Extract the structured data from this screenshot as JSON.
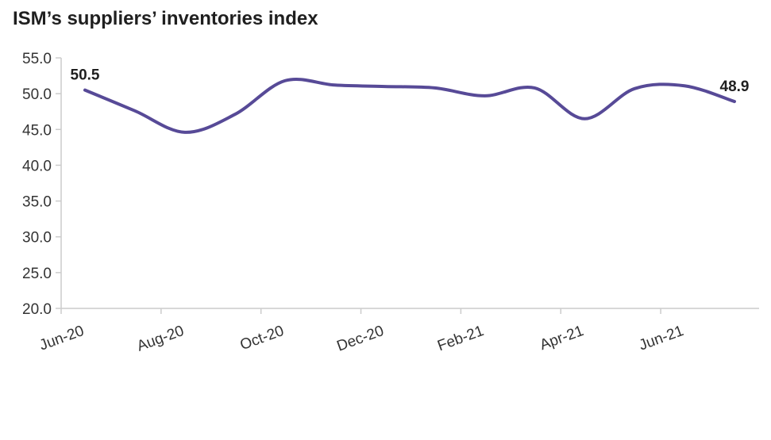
{
  "title": "ISM’s suppliers’ inventories index",
  "colors": {
    "line": "#574A97",
    "axis": "#CCCCCC",
    "text": "#333333"
  },
  "chart_data": {
    "type": "line",
    "title": "ISM’s suppliers’ inventories index",
    "xlabel": "",
    "ylabel": "",
    "ylim": [
      20,
      55
    ],
    "y_ticks": [
      "20.0",
      "25.0",
      "30.0",
      "35.0",
      "40.0",
      "45.0",
      "50.0",
      "55.0"
    ],
    "x": [
      "Jun-20",
      "Jul-20",
      "Aug-20",
      "Sep-20",
      "Oct-20",
      "Nov-20",
      "Dec-20",
      "Jan-21",
      "Feb-21",
      "Mar-21",
      "Apr-21",
      "May-21",
      "Jun-21",
      "Jul-21"
    ],
    "x_tick_labels": [
      "Jun-20",
      "Aug-20",
      "Oct-20",
      "Dec-20",
      "Feb-21",
      "Apr-21",
      "Jun-21"
    ],
    "series": [
      {
        "values": [
          50.5,
          47.6,
          44.6,
          47.1,
          51.8,
          51.2,
          51.0,
          50.8,
          49.7,
          50.8,
          46.5,
          50.7,
          51.1,
          48.9
        ]
      }
    ],
    "data_labels": [
      {
        "index": 0,
        "text": "50.5"
      },
      {
        "index": 13,
        "text": "48.9"
      }
    ],
    "grid": false,
    "legend": "none"
  }
}
